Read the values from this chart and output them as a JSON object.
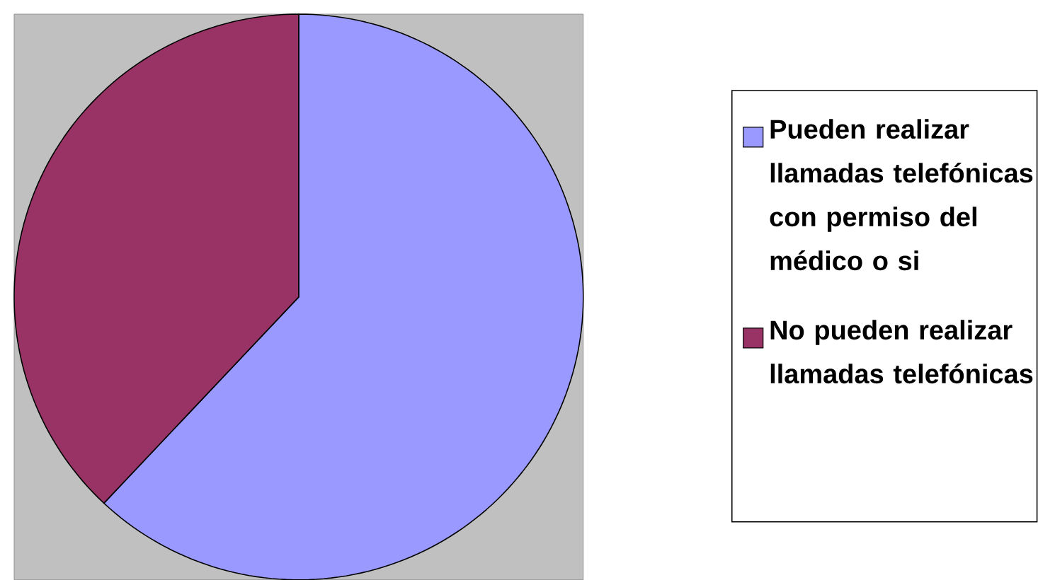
{
  "chart_data": {
    "type": "pie",
    "categories": [
      "Pueden realizar llamadas telefónicas con permiso del médico o si",
      "No pueden realizar llamadas telefónicas"
    ],
    "values": [
      62,
      38
    ],
    "colors": [
      "#9999ff",
      "#993366"
    ],
    "legend": "right"
  }
}
